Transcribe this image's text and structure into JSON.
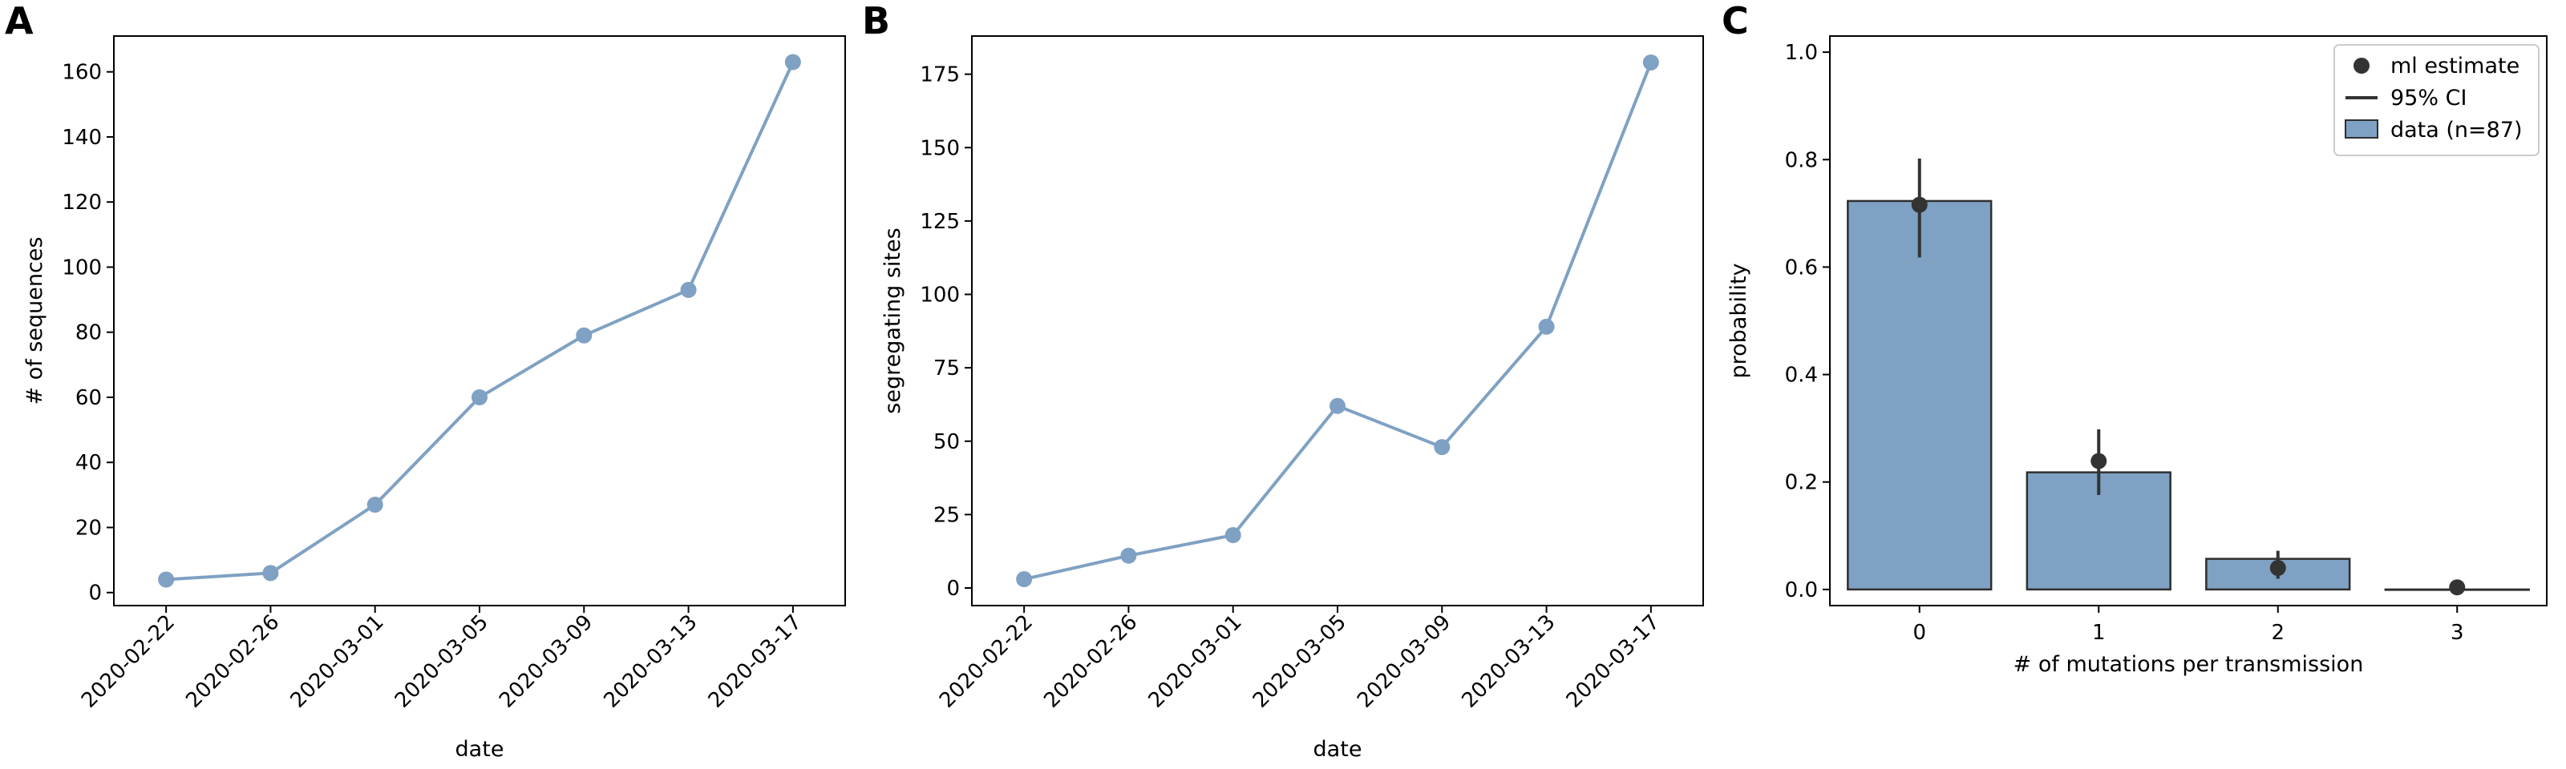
{
  "colors": {
    "series": "#7fa1c3",
    "bar_edge": "#2f2f2f",
    "estimate": "#333333",
    "axis": "#000000"
  },
  "chart_data": [
    {
      "type": "line",
      "panel_label": "A",
      "x": [
        "2020-02-22",
        "2020-02-26",
        "2020-03-01",
        "2020-03-05",
        "2020-03-09",
        "2020-03-13",
        "2020-03-17"
      ],
      "y": [
        4,
        6,
        27,
        60,
        79,
        93,
        163
      ],
      "xlabel": "date",
      "ylabel": "# of sequences",
      "ylim": [
        -4,
        171
      ],
      "yticks": [
        0,
        20,
        40,
        60,
        80,
        100,
        120,
        140,
        160
      ],
      "grid": false,
      "marker": "circle"
    },
    {
      "type": "line",
      "panel_label": "B",
      "x": [
        "2020-02-22",
        "2020-02-26",
        "2020-03-01",
        "2020-03-05",
        "2020-03-09",
        "2020-03-13",
        "2020-03-17"
      ],
      "y": [
        3,
        11,
        18,
        62,
        48,
        89,
        179
      ],
      "xlabel": "date",
      "ylabel": "segregating sites",
      "ylim": [
        -6,
        188
      ],
      "yticks": [
        0,
        25,
        50,
        75,
        100,
        125,
        150,
        175
      ],
      "grid": false,
      "marker": "circle"
    },
    {
      "type": "bar",
      "panel_label": "C",
      "categories": [
        "0",
        "1",
        "2",
        "3"
      ],
      "values": [
        0.723,
        0.218,
        0.057,
        0.0
      ],
      "ml_estimate": [
        0.716,
        0.239,
        0.04,
        0.004
      ],
      "ci_low": [
        0.618,
        0.176,
        0.02,
        0.0
      ],
      "ci_high": [
        0.802,
        0.298,
        0.072,
        0.008
      ],
      "xlabel": "# of mutations per transmission",
      "ylabel": "probability",
      "ylim": [
        -0.03,
        1.03
      ],
      "yticks": [
        0.0,
        0.2,
        0.4,
        0.6,
        0.8,
        1.0
      ],
      "ytick_labels": [
        "0.0",
        "0.2",
        "0.4",
        "0.6",
        "0.8",
        "1.0"
      ],
      "grid": false,
      "legend": {
        "placement": "top-right",
        "entries": [
          "ml estimate",
          "95% CI",
          "data (n=87)"
        ]
      }
    }
  ]
}
